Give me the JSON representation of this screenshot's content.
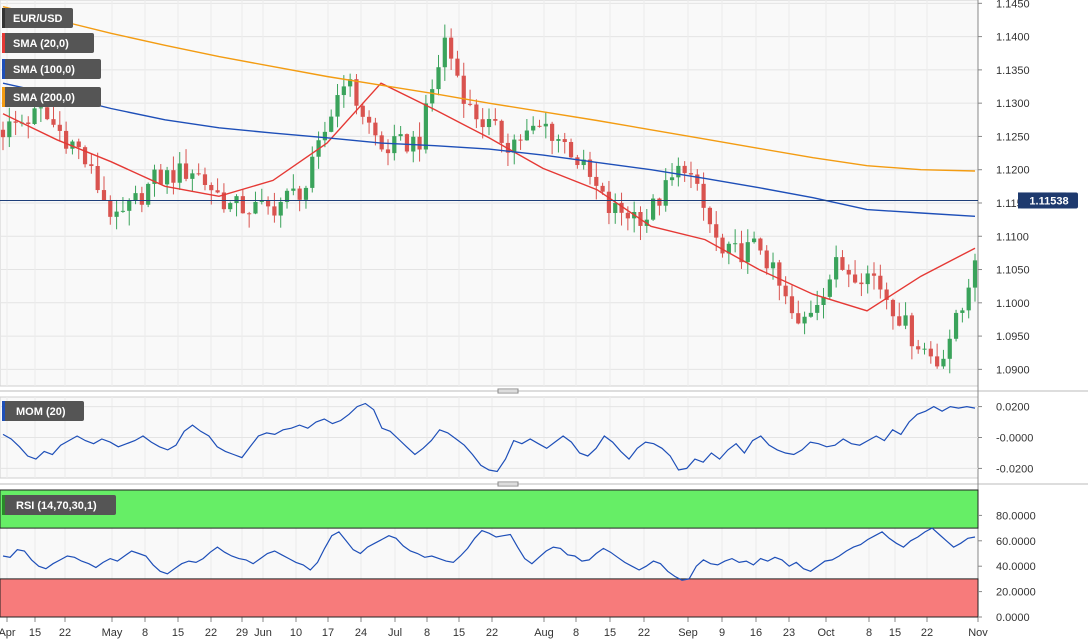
{
  "chart_data": [
    {
      "type": "candlestick",
      "symbol": "EUR/USD",
      "last_price": "1.11538",
      "ylim": [
        1.0875,
        1.1455
      ],
      "y_ticks": [
        "1.1450",
        "1.1400",
        "1.1350",
        "1.1300",
        "1.1250",
        "1.1200",
        "1.1150",
        "1.1100",
        "1.1050",
        "1.1000",
        "1.0950",
        "1.0900"
      ],
      "x_ticks": [
        "Apr",
        "15",
        "22",
        "May",
        "8",
        "15",
        "22",
        "29",
        "Jun",
        "10",
        "17",
        "24",
        "Jul",
        "8",
        "15",
        "22",
        "Aug",
        "8",
        "15",
        "22",
        "Sep",
        "9",
        "16",
        "23",
        "Oct",
        "8",
        "15",
        "22",
        "Nov"
      ],
      "grid": true,
      "legend_position": "top-left",
      "overlays": [
        {
          "name": "SMA (20,0)",
          "color": "#e53935",
          "values_every_10_bars": [
            1.1284,
            1.1245,
            1.1212,
            1.1175,
            1.116,
            1.1184,
            1.124,
            1.133,
            1.129,
            1.1248,
            1.1202,
            1.117,
            1.1115,
            1.1095,
            1.105,
            1.1013,
            1.0988,
            1.104,
            1.1082
          ]
        },
        {
          "name": "SMA (100,0)",
          "color": "#1e4fb8",
          "values_every_10_bars": [
            1.133,
            1.1312,
            1.1292,
            1.1275,
            1.1263,
            1.1255,
            1.1248,
            1.124,
            1.1236,
            1.1231,
            1.1222,
            1.1211,
            1.12,
            1.1187,
            1.1173,
            1.1158,
            1.114,
            1.1135,
            1.113
          ]
        },
        {
          "name": "SMA (200,0)",
          "color": "#f39c12",
          "values_every_10_bars": [
            1.1445,
            1.1425,
            1.1405,
            1.1387,
            1.137,
            1.1355,
            1.134,
            1.1327,
            1.1314,
            1.13,
            1.1287,
            1.1274,
            1.126,
            1.1246,
            1.1232,
            1.1218,
            1.1206,
            1.12,
            1.1198
          ]
        }
      ]
    },
    {
      "type": "line",
      "name": "MOM (20)",
      "color": "#1e4fb8",
      "y_ticks": [
        "0.0200",
        "-0.0000",
        "-0.0200"
      ],
      "ylim": [
        -0.0262,
        0.0262
      ],
      "values": [
        0.002,
        -0.001,
        -0.006,
        -0.012,
        -0.014,
        -0.009,
        -0.011,
        -0.005,
        -0.002,
        0.001,
        -0.002,
        -0.004,
        -0.001,
        -0.003,
        -0.006,
        -0.004,
        -0.002,
        0.001,
        -0.003,
        -0.006,
        -0.008,
        -0.005,
        0.004,
        0.008,
        0.004,
        0.001,
        -0.006,
        -0.009,
        -0.011,
        -0.013,
        -0.006,
        0.001,
        0.003,
        0.002,
        0.005,
        0.006,
        0.008,
        0.006,
        0.01,
        0.012,
        0.009,
        0.011,
        0.015,
        0.02,
        0.022,
        0.018,
        0.006,
        0.004,
        -0.001,
        -0.006,
        -0.011,
        -0.007,
        -0.002,
        0.005,
        0.003,
        -0.001,
        -0.005,
        -0.011,
        -0.018,
        -0.021,
        -0.022,
        -0.014,
        -0.002,
        -0.004,
        -0.001,
        -0.004,
        -0.007,
        -0.003,
        0.001,
        -0.003,
        -0.01,
        -0.012,
        -0.007,
        0.001,
        -0.003,
        -0.009,
        -0.014,
        -0.007,
        -0.003,
        -0.004,
        -0.007,
        -0.012,
        -0.021,
        -0.02,
        -0.014,
        -0.016,
        -0.01,
        -0.014,
        -0.008,
        -0.004,
        -0.01,
        -0.002,
        0.001,
        -0.005,
        -0.008,
        -0.01,
        -0.011,
        -0.008,
        -0.003,
        -0.004,
        -0.006,
        -0.005,
        -0.001,
        -0.004,
        -0.005,
        -0.002,
        0.001,
        -0.002,
        0.005,
        0.002,
        0.01,
        0.015,
        0.017,
        0.02,
        0.017,
        0.02,
        0.019,
        0.02,
        0.019
      ]
    },
    {
      "type": "line",
      "name": "RSI (14,70,30,1)",
      "color": "#1e4fb8",
      "y_ticks": [
        "80.0000",
        "60.0000",
        "40.0000",
        "20.0000",
        "0.0000"
      ],
      "ylim": [
        0,
        100
      ],
      "overbought": 70,
      "oversold": 30,
      "values": [
        48,
        47,
        53,
        52,
        45,
        40,
        38,
        42,
        45,
        48,
        47,
        44,
        42,
        39,
        43,
        46,
        44,
        48,
        52,
        50,
        48,
        41,
        36,
        34,
        38,
        42,
        44,
        43,
        46,
        51,
        55,
        51,
        48,
        46,
        45,
        42,
        46,
        50,
        52,
        49,
        46,
        43,
        41,
        37,
        43,
        54,
        64,
        67,
        60,
        53,
        50,
        55,
        58,
        61,
        64,
        62,
        56,
        52,
        50,
        47,
        48,
        46,
        44,
        43,
        48,
        54,
        62,
        68,
        66,
        63,
        64,
        65,
        55,
        46,
        42,
        47,
        52,
        55,
        54,
        49,
        48,
        44,
        45,
        50,
        54,
        51,
        47,
        43,
        40,
        37,
        40,
        44,
        42,
        36,
        32,
        29,
        30,
        40,
        45,
        42,
        41,
        44,
        46,
        43,
        44,
        41,
        46,
        44,
        47,
        45,
        40,
        43,
        38,
        36,
        40,
        44,
        45,
        48,
        52,
        55,
        57,
        61,
        64,
        67,
        62,
        58,
        55,
        60,
        63,
        67,
        70,
        65,
        60,
        55,
        58,
        62,
        63
      ]
    }
  ]
}
